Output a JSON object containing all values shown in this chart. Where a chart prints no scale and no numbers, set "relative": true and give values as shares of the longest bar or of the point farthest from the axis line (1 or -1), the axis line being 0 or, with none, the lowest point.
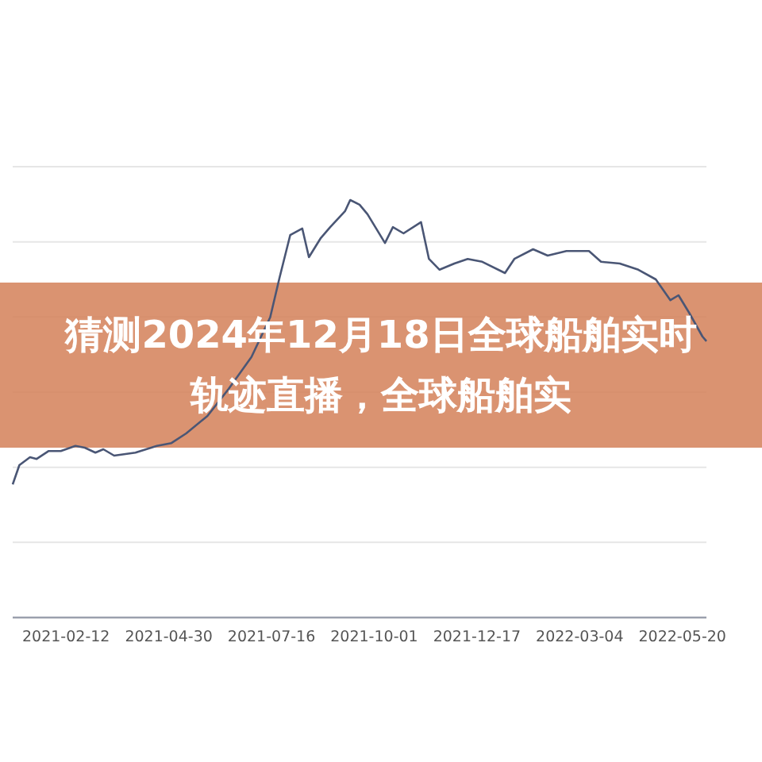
{
  "chart_data": {
    "type": "line",
    "title": "猜测2024年12月18日全球船舶实时轨迹直播，全球船舶实",
    "relative": true,
    "grid": "y",
    "marker": "none",
    "xlim": [
      "2021-01-03",
      "2022-06-07"
    ],
    "xticks": [
      "2021-02-12",
      "2021-04-30",
      "2021-07-16",
      "2021-10-01",
      "2021-12-17",
      "2022-03-04",
      "2022-05-20"
    ],
    "x": [
      "2021-01-03",
      "2021-01-08",
      "2021-01-16",
      "2021-01-21",
      "2021-01-30",
      "2021-02-08",
      "2021-02-19",
      "2021-02-26",
      "2021-03-06",
      "2021-03-12",
      "2021-03-20",
      "2021-04-05",
      "2021-04-21",
      "2021-05-02",
      "2021-05-13",
      "2021-05-29",
      "2021-06-14",
      "2021-07-01",
      "2021-07-15",
      "2021-07-22",
      "2021-07-30",
      "2021-08-08",
      "2021-08-13",
      "2021-08-22",
      "2021-08-29",
      "2021-09-09",
      "2021-09-13",
      "2021-09-20",
      "2021-09-26",
      "2021-10-09",
      "2021-10-15",
      "2021-10-23",
      "2021-11-05",
      "2021-11-11",
      "2021-11-19",
      "2021-11-30",
      "2021-12-10",
      "2021-12-21",
      "2022-01-07",
      "2022-01-14",
      "2022-01-28",
      "2022-02-08",
      "2022-02-22",
      "2022-03-11",
      "2022-03-20",
      "2022-04-03",
      "2022-04-17",
      "2022-04-30",
      "2022-05-11",
      "2022-05-17",
      "2022-05-25",
      "2022-06-04",
      "2022-06-07"
    ],
    "series": [
      {
        "color": "#4a5675",
        "values": [
          0.319,
          0.365,
          0.384,
          0.38,
          0.399,
          0.399,
          0.411,
          0.407,
          0.395,
          0.403,
          0.388,
          0.395,
          0.411,
          0.418,
          0.441,
          0.483,
          0.548,
          0.624,
          0.719,
          0.814,
          0.916,
          0.932,
          0.863,
          0.909,
          0.935,
          0.973,
          1.0,
          0.989,
          0.966,
          0.897,
          0.935,
          0.92,
          0.947,
          0.859,
          0.833,
          0.848,
          0.859,
          0.852,
          0.825,
          0.859,
          0.882,
          0.867,
          0.878,
          0.878,
          0.852,
          0.848,
          0.833,
          0.81,
          0.76,
          0.772,
          0.73,
          0.673,
          0.662
        ]
      }
    ]
  }
}
